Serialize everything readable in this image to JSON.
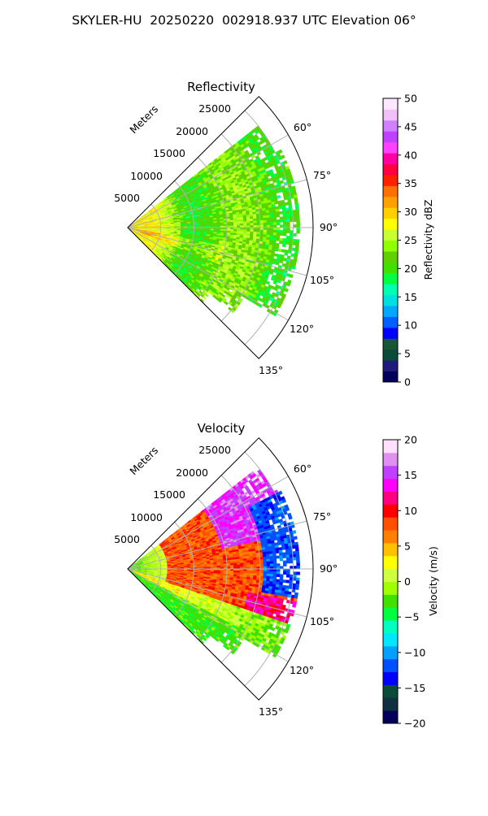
{
  "figure": {
    "title": "SKYLER-HU  20250220  002918.937 UTC Elevation 06°"
  },
  "chart_data": [
    {
      "type": "heatmap",
      "projection": "polar-sector",
      "title": "Reflectivity",
      "radial_label": "Meters",
      "radial_ticks": [
        5000,
        10000,
        15000,
        20000,
        25000
      ],
      "radial_tick_labels": [
        "5000",
        "10000",
        "15000",
        "20000",
        "25000"
      ],
      "rlim": [
        0,
        28000
      ],
      "angle_ticks": [
        60,
        75,
        90,
        105,
        120,
        135
      ],
      "angle_tick_labels": [
        "60°",
        "75°",
        "90°",
        "105°",
        "120°",
        "135°"
      ],
      "angle_range_deg": [
        45,
        135
      ],
      "grid": true,
      "colorbar": {
        "label": "Reflectivity dBZ",
        "min": 0,
        "max": 50,
        "ticks": [
          0,
          5,
          10,
          15,
          20,
          25,
          30,
          35,
          40,
          45,
          50
        ],
        "tick_labels": [
          "0",
          "5",
          "10",
          "15",
          "20",
          "25",
          "30",
          "35",
          "40",
          "45",
          "50"
        ]
      },
      "field": {
        "description_values": "mostly 20–28 dBZ, higher (25–35) near origin",
        "typical_value": 22,
        "near_origin_value": 28,
        "data_max_range": 26000
      }
    },
    {
      "type": "heatmap",
      "projection": "polar-sector",
      "title": "Velocity",
      "radial_label": "Meters",
      "radial_ticks": [
        5000,
        10000,
        15000,
        20000,
        25000
      ],
      "radial_tick_labels": [
        "5000",
        "10000",
        "15000",
        "20000",
        "25000"
      ],
      "rlim": [
        0,
        28000
      ],
      "angle_ticks": [
        60,
        75,
        90,
        105,
        120,
        135
      ],
      "angle_tick_labels": [
        "60°",
        "75°",
        "90°",
        "105°",
        "120°",
        "135°"
      ],
      "angle_range_deg": [
        45,
        135
      ],
      "grid": true,
      "colorbar": {
        "label": "Velocity (m/s)",
        "min": -20,
        "max": 20,
        "ticks": [
          -20,
          -15,
          -10,
          -5,
          0,
          5,
          10,
          15,
          20
        ],
        "tick_labels": [
          "−20",
          "−15",
          "−10",
          "−5",
          "0",
          "5",
          "10",
          "15",
          "20"
        ]
      },
      "field": {
        "near_origin_value": -3,
        "mid_value": 8,
        "north_far_value": 15,
        "aliased_value": -12,
        "south_value": -2,
        "data_max_range": 26000
      }
    }
  ],
  "colors": {
    "reflectivity_colormap": [
      "#04005a",
      "#1e1c7a",
      "#0a4b3a",
      "#185636",
      "#0000ff",
      "#0060ff",
      "#00a8ff",
      "#00e0e0",
      "#00ffb0",
      "#00ff40",
      "#40e000",
      "#60d000",
      "#90ff00",
      "#c8ff30",
      "#ffff00",
      "#ffd000",
      "#ffa000",
      "#ff7000",
      "#ff2000",
      "#ff0040",
      "#ff00a0",
      "#ff40ff",
      "#c040ff",
      "#d080ff",
      "#f0c0f8",
      "#ffe8ff"
    ],
    "velocity_colormap": [
      "#04005a",
      "#103040",
      "#0a4b3a",
      "#0000ff",
      "#0050ff",
      "#00a0ff",
      "#00e8ff",
      "#00ffc0",
      "#00ff40",
      "#40e000",
      "#a0ff00",
      "#d0ff40",
      "#ffff00",
      "#ffc000",
      "#ff8000",
      "#ff5000",
      "#ff0000",
      "#ff0080",
      "#ff00ff",
      "#c040ff",
      "#e090f0",
      "#ffe0ff"
    ],
    "grid": "#b0b0b0"
  }
}
